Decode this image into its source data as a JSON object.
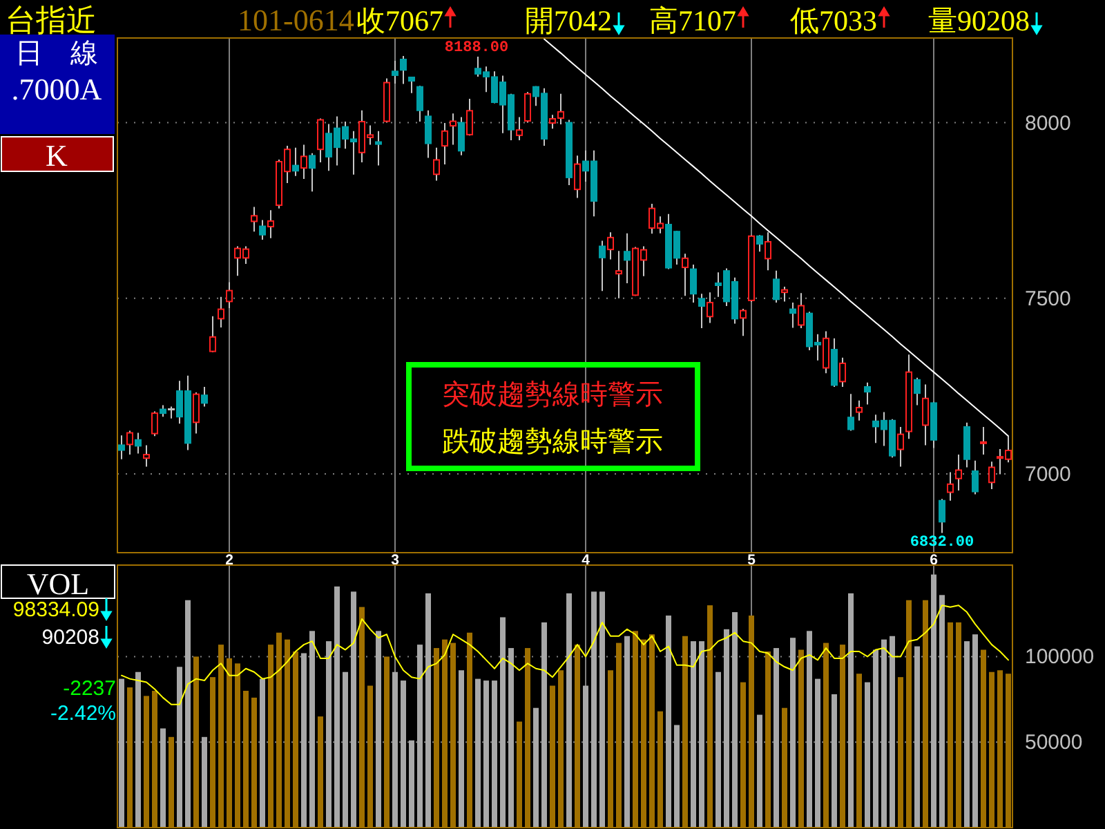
{
  "chart_data": [
    {
      "type": "candlestick",
      "title": "台指近",
      "subtitle": "101-0614",
      "categories": [
        null,
        null,
        null,
        null,
        null,
        null,
        null,
        null,
        null,
        null,
        null,
        null,
        null,
        "2",
        null,
        null,
        null,
        null,
        null,
        null,
        null,
        null,
        null,
        null,
        null,
        null,
        null,
        null,
        null,
        null,
        null,
        null,
        null,
        "3",
        null,
        null,
        null,
        null,
        null,
        null,
        null,
        null,
        null,
        null,
        null,
        null,
        null,
        null,
        null,
        null,
        null,
        null,
        null,
        null,
        null,
        null,
        "4",
        null,
        null,
        null,
        null,
        null,
        null,
        null,
        null,
        null,
        null,
        null,
        null,
        null,
        null,
        null,
        null,
        null,
        null,
        null,
        "5",
        null,
        null,
        null,
        null,
        null,
        null,
        null,
        null,
        null,
        null,
        null,
        null,
        null,
        null,
        null,
        null,
        null,
        null,
        null,
        null,
        null,
        "6",
        null,
        null,
        null,
        null,
        null,
        null,
        null,
        null,
        null
      ],
      "ohlc": [
        [
          7082,
          7110,
          7042,
          7068
        ],
        [
          7084,
          7123,
          7055,
          7117
        ],
        [
          7097,
          7117,
          7058,
          7080
        ],
        [
          7045,
          7082,
          7021,
          7055
        ],
        [
          7115,
          7178,
          7108,
          7173
        ],
        [
          7184,
          7196,
          7163,
          7173
        ],
        [
          7184,
          7192,
          7158,
          7184
        ],
        [
          7236,
          7265,
          7143,
          7163
        ],
        [
          7236,
          7280,
          7068,
          7088
        ],
        [
          7147,
          7232,
          7115,
          7227
        ],
        [
          7224,
          7248,
          7192,
          7202
        ],
        [
          7349,
          7449,
          7347,
          7390
        ],
        [
          7442,
          7504,
          7417,
          7469
        ],
        [
          7491,
          7546,
          7472,
          7522
        ],
        [
          7615,
          7648,
          7564,
          7642
        ],
        [
          7615,
          7648,
          7598,
          7640
        ],
        [
          7719,
          7760,
          7690,
          7735
        ],
        [
          7705,
          7723,
          7667,
          7681
        ],
        [
          7704,
          7751,
          7671,
          7720
        ],
        [
          7765,
          7895,
          7756,
          7889
        ],
        [
          7861,
          7934,
          7828,
          7924
        ],
        [
          7878,
          7929,
          7848,
          7863
        ],
        [
          7871,
          7937,
          7840,
          7904
        ],
        [
          7906,
          7913,
          7804,
          7871
        ],
        [
          7924,
          8012,
          7887,
          8008
        ],
        [
          7969,
          7996,
          7863,
          7903
        ],
        [
          7984,
          8018,
          7878,
          7930
        ],
        [
          7988,
          8003,
          7926,
          7954
        ],
        [
          7953,
          7976,
          7852,
          7946
        ],
        [
          7915,
          8035,
          7887,
          8003
        ],
        [
          7958,
          7992,
          7937,
          7965
        ],
        [
          7945,
          7976,
          7878,
          7939
        ],
        [
          8004,
          8126,
          8000,
          8114
        ],
        [
          8146,
          8176,
          8111,
          8135
        ],
        [
          8180,
          8190,
          8110,
          8150
        ],
        [
          8129,
          8130,
          8084,
          8119
        ],
        [
          8102,
          8105,
          8003,
          8035
        ],
        [
          8018,
          8035,
          7900,
          7941
        ],
        [
          7853,
          7929,
          7835,
          7894
        ],
        [
          7934,
          7999,
          7881,
          7976
        ],
        [
          7991,
          8026,
          7937,
          8004
        ],
        [
          8000,
          8016,
          7907,
          7920
        ],
        [
          7966,
          8068,
          7963,
          8034
        ],
        [
          8154,
          8188,
          8131,
          8139
        ],
        [
          8144,
          8160,
          8087,
          8131
        ],
        [
          8130,
          8146,
          8055,
          8058
        ],
        [
          8115,
          8134,
          7970,
          8051
        ],
        [
          8079,
          8082,
          7950,
          7980
        ],
        [
          7964,
          8016,
          7950,
          7979
        ],
        [
          8005,
          8087,
          8000,
          8082
        ],
        [
          8102,
          8104,
          8048,
          8075
        ],
        [
          8083,
          8098,
          7934,
          7954
        ],
        [
          7999,
          8022,
          7983,
          8011
        ],
        [
          8013,
          8082,
          7995,
          8031
        ],
        [
          8000,
          8008,
          7822,
          7844
        ],
        [
          7810,
          7906,
          7786,
          7882
        ],
        [
          7890,
          7921,
          7832,
          7863
        ],
        [
          7890,
          7921,
          7733,
          7777
        ],
        [
          7648,
          7664,
          7521,
          7616
        ],
        [
          7639,
          7688,
          7611,
          7673
        ],
        [
          7570,
          7635,
          7500,
          7578
        ],
        [
          7633,
          7685,
          7543,
          7609
        ],
        [
          7509,
          7646,
          7507,
          7642
        ],
        [
          7609,
          7648,
          7563,
          7638
        ],
        [
          7700,
          7769,
          7684,
          7756
        ],
        [
          7700,
          7733,
          7685,
          7713
        ],
        [
          7710,
          7740,
          7583,
          7587
        ],
        [
          7690,
          7692,
          7596,
          7615
        ],
        [
          7588,
          7627,
          7507,
          7614
        ],
        [
          7583,
          7596,
          7488,
          7513
        ],
        [
          7499,
          7513,
          7415,
          7478
        ],
        [
          7448,
          7517,
          7430,
          7488
        ],
        [
          7543,
          7574,
          7504,
          7537
        ],
        [
          7578,
          7585,
          7478,
          7491
        ],
        [
          7547,
          7559,
          7428,
          7442
        ],
        [
          7444,
          7470,
          7393,
          7465
        ],
        [
          7494,
          7680,
          7490,
          7677
        ],
        [
          7677,
          7680,
          7633,
          7655
        ],
        [
          7613,
          7688,
          7580,
          7661
        ],
        [
          7554,
          7579,
          7488,
          7497
        ],
        [
          7517,
          7533,
          7491,
          7524
        ],
        [
          7469,
          7488,
          7416,
          7458
        ],
        [
          7424,
          7515,
          7415,
          7479
        ],
        [
          7457,
          7462,
          7352,
          7363
        ],
        [
          7374,
          7398,
          7323,
          7368
        ],
        [
          7302,
          7406,
          7287,
          7386
        ],
        [
          7354,
          7386,
          7248,
          7253
        ],
        [
          7263,
          7331,
          7248,
          7315
        ],
        [
          7161,
          7228,
          7123,
          7127
        ],
        [
          7176,
          7209,
          7152,
          7189
        ],
        [
          7248,
          7260,
          7198,
          7234
        ],
        [
          7150,
          7169,
          7088,
          7135
        ],
        [
          7152,
          7176,
          7080,
          7127
        ],
        [
          7152,
          7156,
          7047,
          7052
        ],
        [
          7070,
          7134,
          7021,
          7113
        ],
        [
          7121,
          7340,
          7100,
          7290
        ],
        [
          7268,
          7274,
          7196,
          7230
        ],
        [
          7139,
          7255,
          7082,
          7215
        ],
        [
          7202,
          7205,
          7074,
          7097
        ],
        [
          6924,
          6929,
          6832,
          6864
        ],
        [
          6948,
          7005,
          6924,
          6971
        ],
        [
          6987,
          7055,
          6953,
          7011
        ],
        [
          7134,
          7146,
          7019,
          7042
        ],
        [
          7008,
          7038,
          6942,
          6950
        ],
        [
          7089,
          7134,
          7055,
          7091
        ],
        [
          6976,
          7035,
          6957,
          7019
        ],
        [
          7045,
          7071,
          6999,
          7049
        ],
        [
          7042,
          7107,
          7033,
          7067
        ]
      ],
      "series": [
        {
          "type": "line",
          "color": "#ffffff",
          "values": [
            null,
            null,
            null,
            null,
            null,
            null,
            null,
            null,
            null,
            null,
            null,
            null,
            null,
            null,
            null,
            null,
            null,
            null,
            null,
            null,
            null,
            null,
            null,
            null,
            null,
            null,
            null,
            null,
            null,
            null,
            null,
            null,
            null,
            null,
            null,
            null,
            null,
            null,
            null,
            null,
            null,
            null,
            null,
            null,
            null,
            null,
            null,
            null,
            null,
            null,
            null,
            8238,
            8218,
            8198,
            8177,
            8157,
            8137,
            8117,
            8097,
            8076,
            8056,
            8036,
            8016,
            7996,
            7976,
            7955,
            7935,
            7915,
            7895,
            7875,
            7855,
            7834,
            7814,
            7794,
            7774,
            7754,
            7734,
            7713,
            7693,
            7673,
            7653,
            7633,
            7613,
            7592,
            7572,
            7552,
            7532,
            7512,
            7491,
            7471,
            7451,
            7431,
            7411,
            7391,
            7370,
            7350,
            7330,
            7310,
            7290,
            7270,
            7250,
            7229,
            7209,
            7189,
            7169,
            7149,
            7129,
            7108
          ]
        }
      ],
      "ylim": [
        6776,
        8241
      ],
      "yticks": [
        7000,
        7500,
        8000
      ],
      "grid": true,
      "annotations": [
        "收7067",
        "開7042",
        "高7107",
        "低7033",
        "量90208",
        "日　線",
        ".7000A",
        "K",
        "突破趨勢線時警示",
        "跌破趨勢線時警示",
        "8188.00",
        "6832.00"
      ]
    },
    {
      "type": "bar",
      "categories": [
        null,
        null,
        null,
        null,
        null,
        null,
        null,
        null,
        null,
        null,
        null,
        null,
        null,
        "2",
        null,
        null,
        null,
        null,
        null,
        null,
        null,
        null,
        null,
        null,
        null,
        null,
        null,
        null,
        null,
        null,
        null,
        null,
        null,
        "3",
        null,
        null,
        null,
        null,
        null,
        null,
        null,
        null,
        null,
        null,
        null,
        null,
        null,
        null,
        null,
        null,
        null,
        null,
        null,
        null,
        null,
        null,
        "4",
        null,
        null,
        null,
        null,
        null,
        null,
        null,
        null,
        null,
        null,
        null,
        null,
        null,
        null,
        null,
        null,
        null,
        null,
        null,
        "5",
        null,
        null,
        null,
        null,
        null,
        null,
        null,
        null,
        null,
        null,
        null,
        null,
        null,
        null,
        null,
        null,
        null,
        null,
        null,
        null,
        null,
        "6",
        null,
        null,
        null,
        null,
        null,
        null,
        null,
        null,
        null
      ],
      "series": [
        {
          "type": "bar",
          "values": [
            87000,
            82000,
            91000,
            77000,
            80000,
            58000,
            53000,
            94000,
            133000,
            100000,
            53000,
            88000,
            107000,
            99000,
            96000,
            80000,
            76000,
            87000,
            107000,
            114000,
            110000,
            103000,
            102000,
            115000,
            65000,
            109000,
            141000,
            91000,
            138000,
            129000,
            83000,
            115000,
            100000,
            91000,
            86000,
            51000,
            107000,
            137000,
            105000,
            110000,
            108000,
            92000,
            114000,
            87000,
            86000,
            86000,
            123000,
            105000,
            62000,
            105000,
            70000,
            120000,
            83000,
            92000,
            137000,
            107000,
            83000,
            138000,
            138000,
            92000,
            108000,
            112000,
            115000,
            110000,
            113000,
            68000,
            124000,
            60000,
            112000,
            109000,
            109000,
            130000,
            91000,
            116000,
            126000,
            85000,
            124000,
            66000,
            103000,
            105000,
            70000,
            111000,
            104000,
            115000,
            87000,
            108000,
            78000,
            107000,
            137000,
            90000,
            85000,
            104000,
            110000,
            112000,
            88000,
            133000,
            106000,
            133000,
            148000,
            136000,
            120000,
            120000,
            109000,
            113000,
            104000,
            91000,
            92000,
            90000
          ],
          "colors": [
            "#a8a8a8",
            "#a07000",
            "#a8a8a8",
            "#a07000",
            "#a07000",
            "#a8a8a8",
            "#a07000",
            "#a8a8a8",
            "#a8a8a8",
            "#a07000",
            "#a8a8a8",
            "#a07000",
            "#a07000",
            "#a07000",
            "#a07000",
            "#a07000",
            "#a07000",
            "#a8a8a8",
            "#a07000",
            "#a07000",
            "#a07000",
            "#a07000",
            "#a8a8a8",
            "#a8a8a8",
            "#a07000",
            "#a8a8a8",
            "#a8a8a8",
            "#a8a8a8",
            "#a8a8a8",
            "#a07000",
            "#a07000",
            "#a8a8a8",
            "#a07000",
            "#a8a8a8",
            "#a8a8a8",
            "#a8a8a8",
            "#a8a8a8",
            "#a8a8a8",
            "#a07000",
            "#a07000",
            "#a07000",
            "#a8a8a8",
            "#a07000",
            "#a8a8a8",
            "#a8a8a8",
            "#a8a8a8",
            "#a8a8a8",
            "#a8a8a8",
            "#a07000",
            "#a07000",
            "#a8a8a8",
            "#a8a8a8",
            "#a07000",
            "#a07000",
            "#a8a8a8",
            "#a07000",
            "#a8a8a8",
            "#a8a8a8",
            "#a8a8a8",
            "#a07000",
            "#a07000",
            "#a8a8a8",
            "#a07000",
            "#a07000",
            "#a07000",
            "#a07000",
            "#a8a8a8",
            "#a8a8a8",
            "#a07000",
            "#a8a8a8",
            "#a8a8a8",
            "#a07000",
            "#a8a8a8",
            "#a8a8a8",
            "#a8a8a8",
            "#a07000",
            "#a07000",
            "#a8a8a8",
            "#a07000",
            "#a8a8a8",
            "#a07000",
            "#a8a8a8",
            "#a07000",
            "#a8a8a8",
            "#a8a8a8",
            "#a07000",
            "#a8a8a8",
            "#a07000",
            "#a8a8a8",
            "#a07000",
            "#a8a8a8",
            "#a8a8a8",
            "#a8a8a8",
            "#a8a8a8",
            "#a07000",
            "#a07000",
            "#a8a8a8",
            "#a07000",
            "#a8a8a8",
            "#a8a8a8",
            "#a07000",
            "#a07000",
            "#a8a8a8",
            "#a8a8a8",
            "#a07000",
            "#a07000",
            "#a07000",
            "#a07000"
          ]
        },
        {
          "type": "line",
          "color": "#ffff00",
          "values": [
            89000,
            87000,
            86000,
            85000,
            81000,
            76000,
            72000,
            72000,
            84000,
            87000,
            86000,
            92000,
            96000,
            89000,
            89000,
            93000,
            91000,
            87000,
            88000,
            92000,
            97000,
            103000,
            107000,
            109000,
            99000,
            99000,
            107000,
            104000,
            108000,
            122000,
            116000,
            111000,
            113000,
            100000,
            92000,
            88000,
            87000,
            94000,
            96000,
            101000,
            113000,
            110000,
            107000,
            103000,
            98000,
            93000,
            99000,
            96000,
            92000,
            96000,
            93000,
            92000,
            88000,
            94000,
            100000,
            107000,
            100000,
            109000,
            120000,
            112000,
            112000,
            116000,
            113000,
            107000,
            112000,
            103000,
            106000,
            95000,
            95000,
            94000,
            103000,
            104000,
            109000,
            111000,
            114000,
            109000,
            108000,
            103000,
            102000,
            97000,
            94000,
            92000,
            99000,
            101000,
            98000,
            105000,
            99000,
            99000,
            103000,
            103000,
            100000,
            104000,
            105000,
            100000,
            100000,
            109000,
            110000,
            114000,
            119000,
            130000,
            129000,
            130000,
            126000,
            119000,
            113000,
            107000,
            103000,
            98000
          ]
        }
      ],
      "ylim": [
        0,
        153500
      ],
      "yticks": [
        50000,
        100000
      ],
      "grid": true,
      "tick_labels": "y",
      "annotations": [
        "VOL",
        "98334.09",
        "90208",
        "-2237",
        "-2.42%"
      ]
    }
  ]
}
